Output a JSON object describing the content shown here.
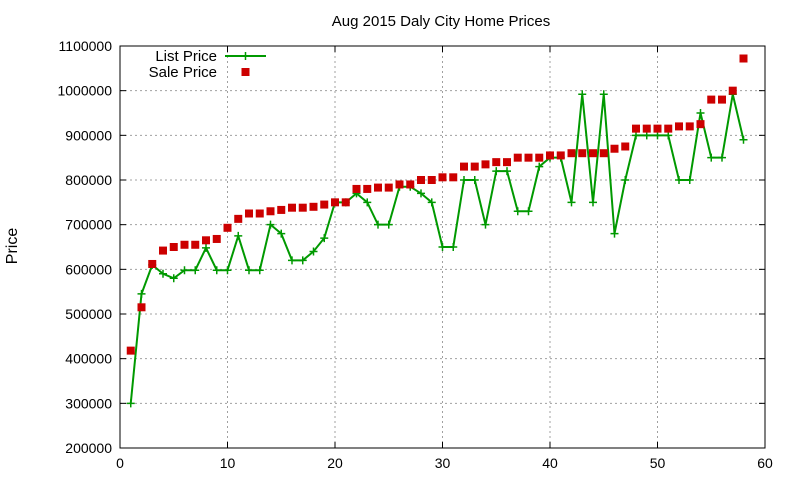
{
  "chart_data": {
    "type": "line",
    "title": "Aug 2015 Daly City Home Prices",
    "xlabel": "",
    "ylabel": "Price",
    "xlim": [
      0,
      60
    ],
    "ylim": [
      200000,
      1100000
    ],
    "x_ticks": [
      0,
      10,
      20,
      30,
      40,
      50,
      60
    ],
    "y_ticks": [
      200000,
      300000,
      400000,
      500000,
      600000,
      700000,
      800000,
      900000,
      1000000,
      1100000
    ],
    "grid": true,
    "legend": "top-left",
    "series": [
      {
        "name": "List Price",
        "style": "line-plus",
        "color": "#009900",
        "x": [
          1,
          2,
          3,
          4,
          5,
          6,
          7,
          8,
          9,
          10,
          11,
          12,
          13,
          14,
          15,
          16,
          17,
          18,
          19,
          20,
          21,
          22,
          23,
          24,
          25,
          26,
          27,
          28,
          29,
          30,
          31,
          32,
          33,
          34,
          35,
          36,
          37,
          38,
          39,
          40,
          41,
          42,
          43,
          44,
          45,
          46,
          47,
          48,
          49,
          50,
          51,
          52,
          53,
          54,
          55,
          56,
          57,
          58
        ],
        "values": [
          300000,
          545000,
          610000,
          590000,
          580000,
          598000,
          598000,
          648000,
          598000,
          598000,
          675000,
          598000,
          598000,
          700000,
          680000,
          620000,
          620000,
          640000,
          670000,
          750000,
          750000,
          770000,
          750000,
          700000,
          700000,
          785000,
          785000,
          770000,
          750000,
          650000,
          650000,
          800000,
          800000,
          700000,
          820000,
          820000,
          730000,
          730000,
          830000,
          850000,
          850000,
          750000,
          992000,
          750000,
          992000,
          680000,
          800000,
          900000,
          900000,
          900000,
          900000,
          800000,
          800000,
          950000,
          850000,
          850000,
          992000,
          890000
        ]
      },
      {
        "name": "Sale Price",
        "style": "square-marker",
        "color": "#cc0000",
        "x": [
          1,
          2,
          3,
          4,
          5,
          6,
          7,
          8,
          9,
          10,
          11,
          12,
          13,
          14,
          15,
          16,
          17,
          18,
          19,
          20,
          21,
          22,
          23,
          24,
          25,
          26,
          27,
          28,
          29,
          30,
          31,
          32,
          33,
          34,
          35,
          36,
          37,
          38,
          39,
          40,
          41,
          42,
          43,
          44,
          45,
          46,
          47,
          48,
          49,
          50,
          51,
          52,
          53,
          54,
          55,
          56,
          57,
          58
        ],
        "values": [
          418000,
          515000,
          612000,
          642000,
          650000,
          655000,
          655000,
          665000,
          668000,
          693000,
          713000,
          725000,
          725000,
          730000,
          733000,
          738000,
          738000,
          740000,
          745000,
          750000,
          750000,
          780000,
          780000,
          783000,
          783000,
          790000,
          790000,
          800000,
          800000,
          806000,
          806000,
          830000,
          830000,
          835000,
          840000,
          840000,
          850000,
          850000,
          850000,
          855000,
          855000,
          860000,
          860000,
          860000,
          860000,
          870000,
          875000,
          915000,
          915000,
          915000,
          915000,
          920000,
          920000,
          925000,
          980000,
          980000,
          1000000,
          1072000
        ]
      }
    ]
  }
}
